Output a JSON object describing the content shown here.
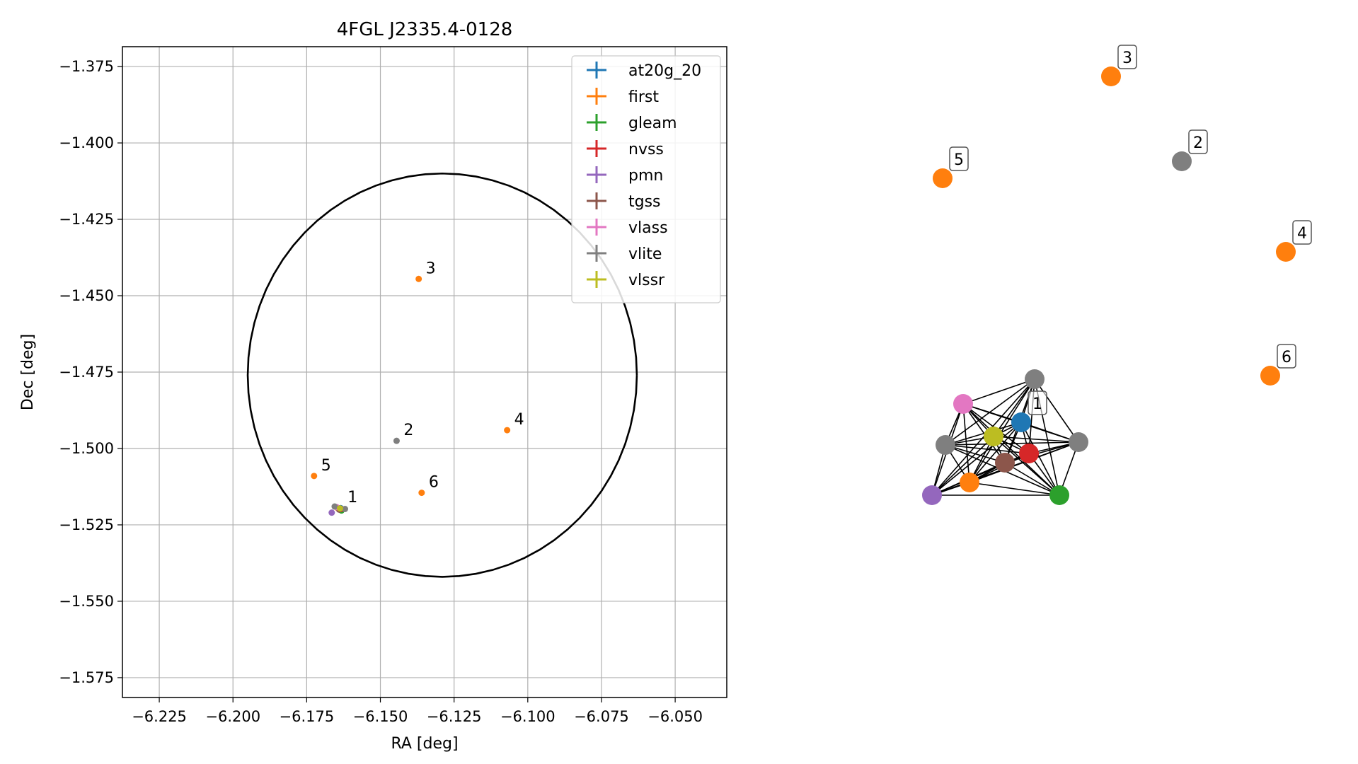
{
  "chart_data": [
    {
      "type": "scatter",
      "title": "4FGL J2335.4-0128",
      "xlabel": "RA [deg]",
      "ylabel": "Dec [deg]",
      "xlim": [
        -6.2375,
        -6.0325
      ],
      "ylim": [
        -1.5815,
        -1.3685
      ],
      "xticks": [
        -6.225,
        -6.2,
        -6.175,
        -6.15,
        -6.125,
        -6.1,
        -6.075,
        -6.05
      ],
      "xtick_labels": [
        "−6.225",
        "−6.200",
        "−6.175",
        "−6.150",
        "−6.125",
        "−6.100",
        "−6.075",
        "−6.050"
      ],
      "yticks": [
        -1.375,
        -1.4,
        -1.425,
        -1.45,
        -1.475,
        -1.5,
        -1.525,
        -1.55,
        -1.575
      ],
      "ytick_labels": [
        "−1.375",
        "−1.400",
        "−1.425",
        "−1.450",
        "−1.475",
        "−1.500",
        "−1.525",
        "−1.550",
        "−1.575"
      ],
      "grid": true,
      "legend_position": "top-right",
      "circle": {
        "center": [
          -6.129,
          -1.476
        ],
        "radius": 0.066
      },
      "series": [
        {
          "name": "at20g_20",
          "color": "#1f77b4",
          "points": [
            [
              -6.1635,
              -1.5195
            ]
          ]
        },
        {
          "name": "first",
          "color": "#ff7f0e",
          "points": [
            [
              -6.137,
              -1.4445
            ],
            [
              -6.107,
              -1.494
            ],
            [
              -6.1725,
              -1.509
            ],
            [
              -6.136,
              -1.5145
            ],
            [
              -6.1645,
              -1.5195
            ]
          ]
        },
        {
          "name": "gleam",
          "color": "#2ca02c",
          "points": [
            [
              -6.1632,
              -1.5203
            ]
          ]
        },
        {
          "name": "nvss",
          "color": "#d62728",
          "points": [
            [
              -6.1633,
              -1.5198
            ]
          ]
        },
        {
          "name": "pmn",
          "color": "#9467bd",
          "points": [
            [
              -6.1665,
              -1.521
            ]
          ]
        },
        {
          "name": "tgss",
          "color": "#8c564b",
          "points": [
            [
              -6.164,
              -1.52
            ]
          ]
        },
        {
          "name": "vlass",
          "color": "#e377c2",
          "points": [
            [
              -6.1648,
              -1.5192
            ]
          ]
        },
        {
          "name": "vlite",
          "color": "#7f7f7f",
          "points": [
            [
              -6.1445,
              -1.4975
            ],
            [
              -6.1655,
              -1.519
            ],
            [
              -6.162,
              -1.5198
            ]
          ]
        },
        {
          "name": "vlssr",
          "color": "#bcbd22",
          "points": [
            [
              -6.1637,
              -1.5196
            ]
          ]
        }
      ],
      "annotations": [
        {
          "text": "1",
          "x": -6.1635,
          "y": -1.5195
        },
        {
          "text": "2",
          "x": -6.1445,
          "y": -1.4975
        },
        {
          "text": "3",
          "x": -6.137,
          "y": -1.4445
        },
        {
          "text": "4",
          "x": -6.107,
          "y": -1.494
        },
        {
          "text": "5",
          "x": -6.1725,
          "y": -1.509
        },
        {
          "text": "6",
          "x": -6.136,
          "y": -1.5145
        }
      ]
    },
    {
      "type": "network",
      "nodes": [
        {
          "id": "n_at20g",
          "color": "#1f77b4"
        },
        {
          "id": "n_first_main",
          "color": "#ff7f0e"
        },
        {
          "id": "n_gleam",
          "color": "#2ca02c"
        },
        {
          "id": "n_nvss",
          "color": "#d62728"
        },
        {
          "id": "n_pmn",
          "color": "#9467bd"
        },
        {
          "id": "n_tgss",
          "color": "#8c564b"
        },
        {
          "id": "n_vlass",
          "color": "#e377c2"
        },
        {
          "id": "n_vlite_a",
          "color": "#7f7f7f"
        },
        {
          "id": "n_vlite_b",
          "color": "#7f7f7f"
        },
        {
          "id": "n_vlite_c",
          "color": "#7f7f7f"
        },
        {
          "id": "n_vlssr",
          "color": "#bcbd22"
        },
        {
          "id": "n_first_3",
          "color": "#ff7f0e"
        },
        {
          "id": "n_vlite_2",
          "color": "#7f7f7f"
        },
        {
          "id": "n_first_5",
          "color": "#ff7f0e"
        },
        {
          "id": "n_first_4",
          "color": "#ff7f0e"
        },
        {
          "id": "n_first_6",
          "color": "#ff7f0e"
        }
      ],
      "cluster": [
        "n_at20g",
        "n_first_main",
        "n_gleam",
        "n_nvss",
        "n_pmn",
        "n_tgss",
        "n_vlass",
        "n_vlite_a",
        "n_vlite_b",
        "n_vlite_c",
        "n_vlssr"
      ],
      "labels": [
        {
          "text": "1",
          "node": "n_at20g"
        },
        {
          "text": "2",
          "node": "n_vlite_2"
        },
        {
          "text": "3",
          "node": "n_first_3"
        },
        {
          "text": "4",
          "node": "n_first_4"
        },
        {
          "text": "5",
          "node": "n_first_5"
        },
        {
          "text": "6",
          "node": "n_first_6"
        }
      ]
    }
  ]
}
